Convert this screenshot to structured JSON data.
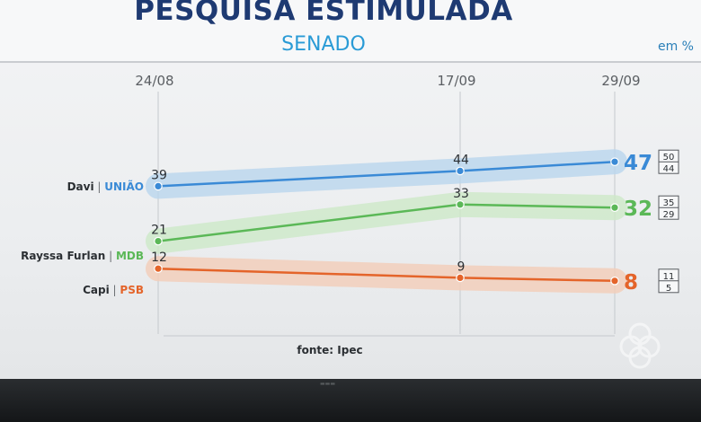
{
  "header": {
    "title": "PESQUISA ESTIMULADA",
    "subtitle": "SENADO",
    "unit": "em %"
  },
  "footer": {
    "source": "fonte: Ipec"
  },
  "chart_data": {
    "type": "line",
    "title": "PESQUISA ESTIMULADA",
    "subtitle": "SENADO",
    "x": [
      "24/08",
      "17/09",
      "29/09"
    ],
    "ylim": [
      0,
      55
    ],
    "grid": true,
    "source": "fonte: Ipec",
    "series": [
      {
        "name": "Davi",
        "party": "UNIÃO",
        "color": "#3a8ad6",
        "band": "#b9d6ee",
        "values": [
          39,
          44,
          47
        ],
        "range_last": [
          "50",
          "44"
        ]
      },
      {
        "name": "Rayssa Furlan",
        "party": "MDB",
        "color": "#5bb857",
        "band": "#cde8c8",
        "values": [
          21,
          33,
          32
        ],
        "range_last": [
          "35",
          "29"
        ]
      },
      {
        "name": "Capi",
        "party": "PSB",
        "color": "#e4642a",
        "band": "#f3cdb8",
        "values": [
          12,
          9,
          8
        ],
        "range_last": [
          "11",
          "5"
        ]
      }
    ]
  }
}
